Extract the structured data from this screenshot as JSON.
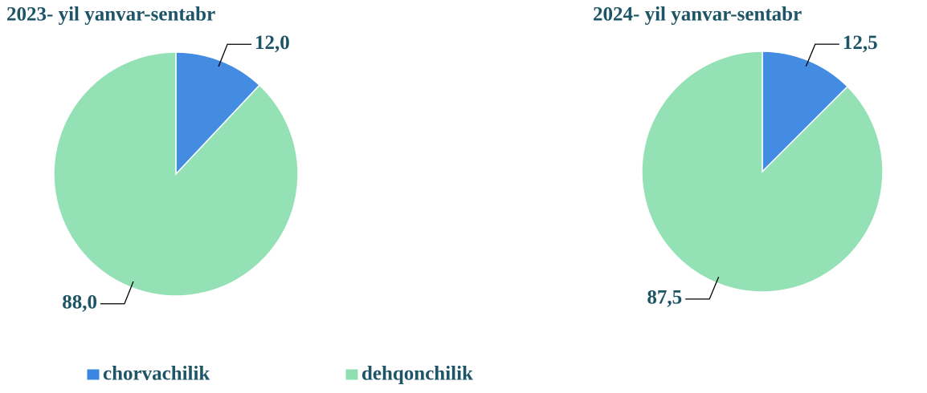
{
  "chart_data": [
    {
      "type": "pie",
      "title": "2023- yil yanvar-sentabr",
      "values": [
        12.0,
        88.0
      ],
      "value_labels": [
        "12,0",
        "88,0"
      ],
      "colors": [
        "#3a86e0",
        "#8ee0b2"
      ]
    },
    {
      "type": "pie",
      "title": "2024- yil yanvar-sentabr",
      "values": [
        12.5,
        87.5
      ],
      "value_labels": [
        "12,5",
        "87,5"
      ],
      "colors": [
        "#3a86e0",
        "#8ee0b2"
      ]
    }
  ],
  "legend": {
    "labels": [
      "chorvachilik",
      "dehqonchilik"
    ],
    "colors": [
      "#3a86e0",
      "#8ee0b2"
    ]
  }
}
